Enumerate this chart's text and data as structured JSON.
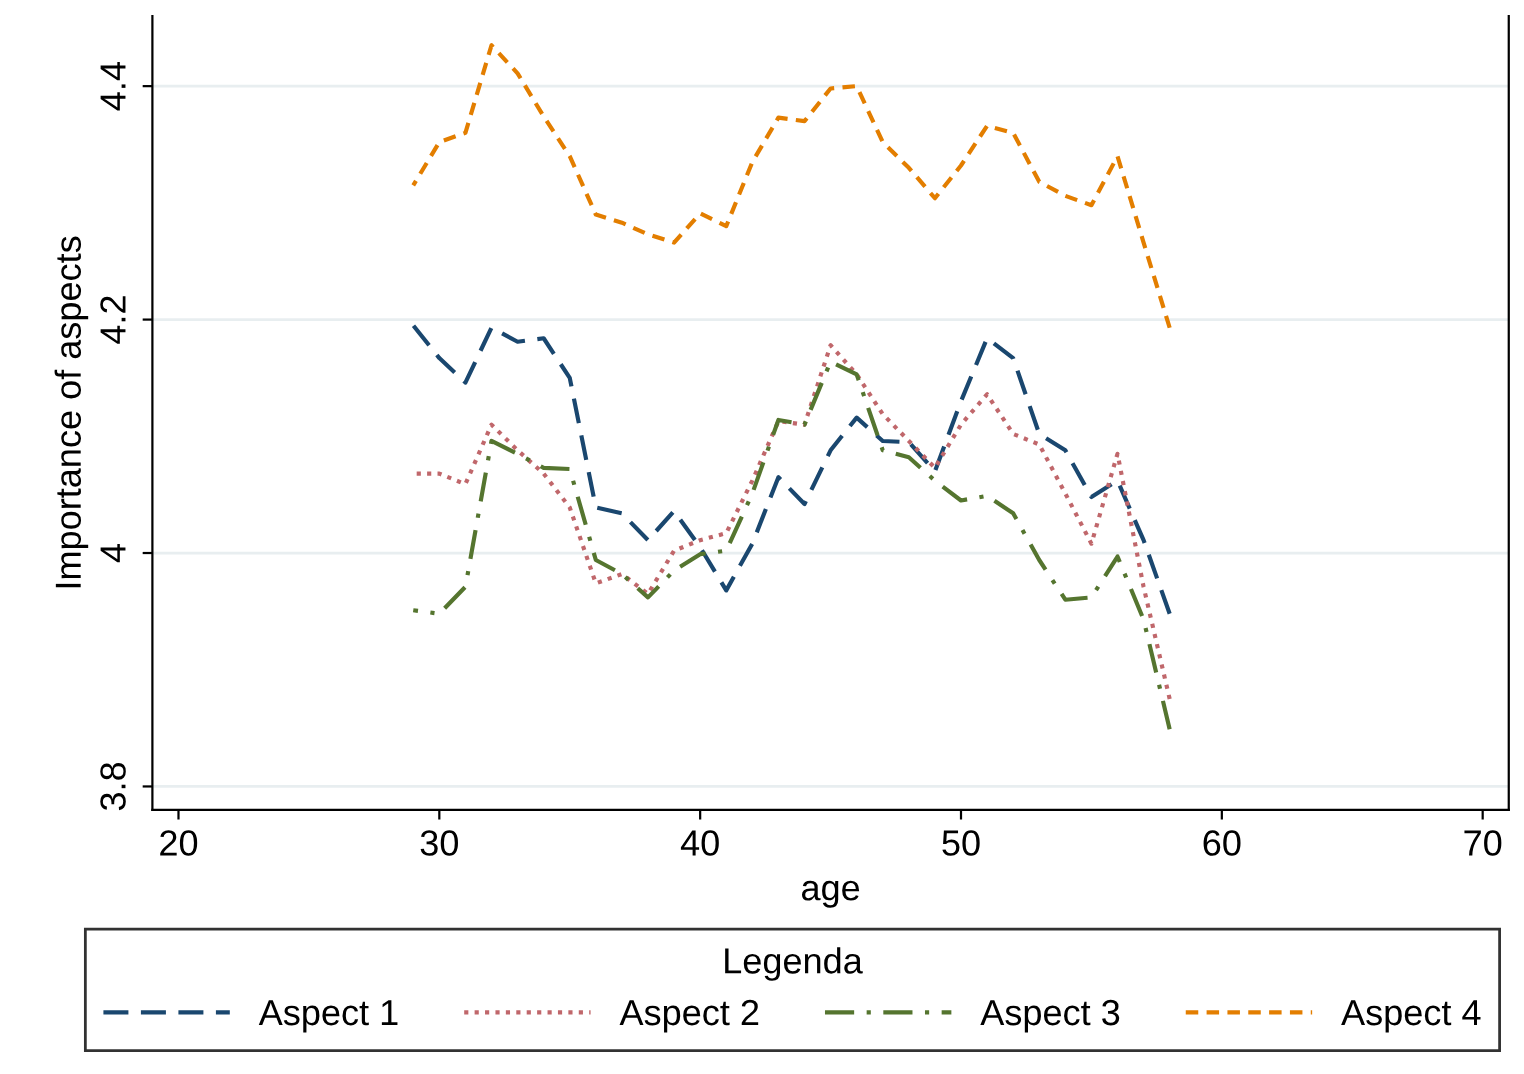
{
  "chart_data": {
    "type": "line",
    "xlabel": "age",
    "ylabel": "Importance of aspects",
    "legend_title": "Legenda",
    "x": [
      29,
      30,
      31,
      32,
      33,
      34,
      35,
      36,
      37,
      38,
      39,
      40,
      41,
      42,
      43,
      44,
      45,
      46,
      47,
      48,
      49,
      50,
      51,
      52,
      53,
      54,
      55,
      56,
      57,
      58
    ],
    "series": [
      {
        "name": "Aspect 1",
        "color": "#1a476f",
        "line_style": "dashed",
        "values": [
          4.195,
          4.167,
          4.146,
          4.193,
          4.181,
          4.184,
          4.15,
          4.039,
          4.034,
          4.011,
          4.036,
          4.005,
          3.968,
          4.008,
          4.065,
          4.042,
          4.088,
          4.116,
          4.096,
          4.095,
          4.07,
          4.13,
          4.184,
          4.167,
          4.102,
          4.088,
          4.048,
          4.062,
          4.011,
          3.948
        ]
      },
      {
        "name": "Aspect 2",
        "color": "#c0676b",
        "line_style": "dotted",
        "values": [
          4.068,
          4.068,
          4.059,
          4.11,
          4.088,
          4.068,
          4.039,
          3.974,
          3.982,
          3.965,
          4.002,
          4.011,
          4.017,
          4.062,
          4.113,
          4.11,
          4.178,
          4.153,
          4.119,
          4.096,
          4.073,
          4.11,
          4.136,
          4.102,
          4.093,
          4.051,
          4.008,
          4.085,
          3.971,
          3.875
        ]
      },
      {
        "name": "Aspect 3",
        "color": "#55752f",
        "line_style": "dashdot",
        "values": [
          3.951,
          3.948,
          3.971,
          4.096,
          4.085,
          4.073,
          4.072,
          3.994,
          3.982,
          3.962,
          3.985,
          3.999,
          4.002,
          4.051,
          4.114,
          4.11,
          4.164,
          4.153,
          4.088,
          4.082,
          4.062,
          4.045,
          4.049,
          4.034,
          3.994,
          3.96,
          3.962,
          3.997,
          3.943,
          3.849
        ]
      },
      {
        "name": "Aspect 4",
        "color": "#e37e00",
        "line_style": "shortdash",
        "values": [
          4.315,
          4.352,
          4.36,
          4.435,
          4.411,
          4.374,
          4.34,
          4.29,
          4.283,
          4.273,
          4.266,
          4.291,
          4.28,
          4.335,
          4.373,
          4.37,
          4.398,
          4.4,
          4.352,
          4.33,
          4.304,
          4.332,
          4.366,
          4.36,
          4.318,
          4.306,
          4.298,
          4.34,
          4.266,
          4.193
        ]
      }
    ],
    "xlim": [
      19,
      71
    ],
    "xticks": [
      20,
      30,
      40,
      50,
      60,
      70
    ],
    "ylim": [
      3.78,
      4.46
    ],
    "yticks": [
      3.8,
      4,
      4.2,
      4.4
    ],
    "grid": "y",
    "legend": "bottom"
  }
}
